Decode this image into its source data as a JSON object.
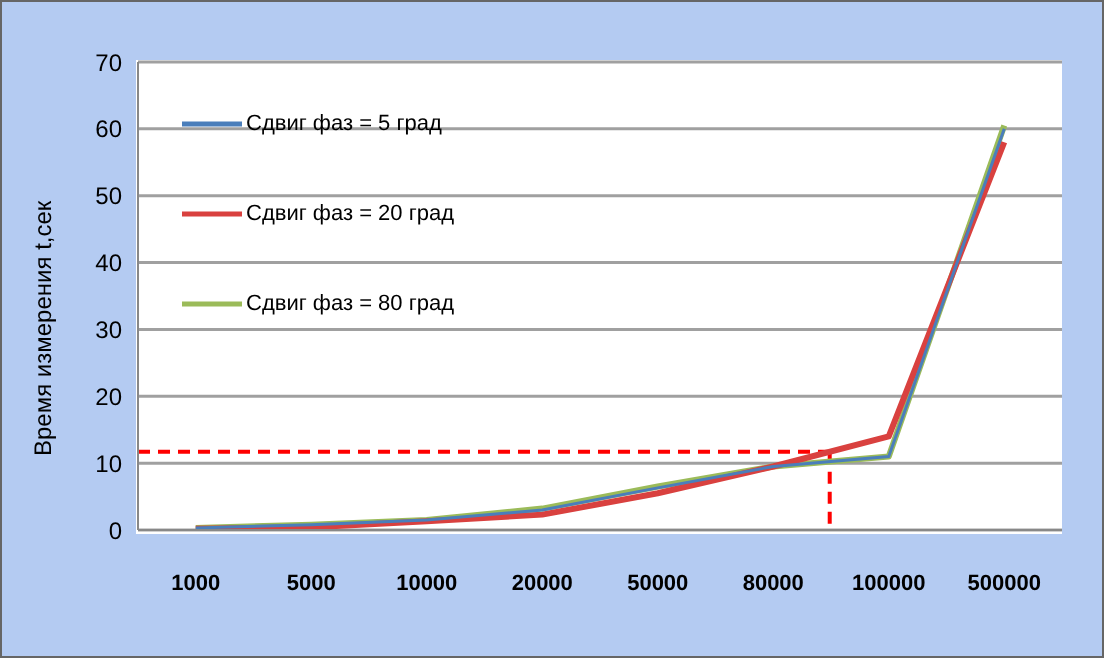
{
  "chart_data": {
    "type": "line",
    "ylabel": "Время измерения t,сек",
    "categories": [
      "1000",
      "5000",
      "10000",
      "20000",
      "50000",
      "80000",
      "100000",
      "500000"
    ],
    "series": [
      {
        "name": "Сдвиг фаз = 5 град",
        "color": "#4a7ebb",
        "values": [
          0.3,
          0.8,
          1.5,
          3,
          6.3,
          9.5,
          11,
          60
        ]
      },
      {
        "name": "Сдвиг фаз = 20 град",
        "color": "#d9413f",
        "values": [
          0.2,
          0.4,
          1.3,
          2.3,
          5.5,
          9.5,
          14,
          58
        ]
      },
      {
        "name": "Сдвиг фаз = 80 град",
        "color": "#9bbb59",
        "values": [
          0.3,
          0.8,
          1.5,
          3.2,
          6.5,
          9.5,
          11,
          60.5
        ]
      }
    ],
    "ylim": [
      0,
      70
    ],
    "yticks": [
      0,
      10,
      20,
      30,
      40,
      50,
      60,
      70
    ],
    "grid": "y",
    "legend": "top left",
    "marker": "none",
    "line_style": "solid",
    "ref_lines": [
      {
        "axis": "y",
        "value": 11.7,
        "color": "#ff0000",
        "line_style": "dashed"
      }
    ]
  }
}
